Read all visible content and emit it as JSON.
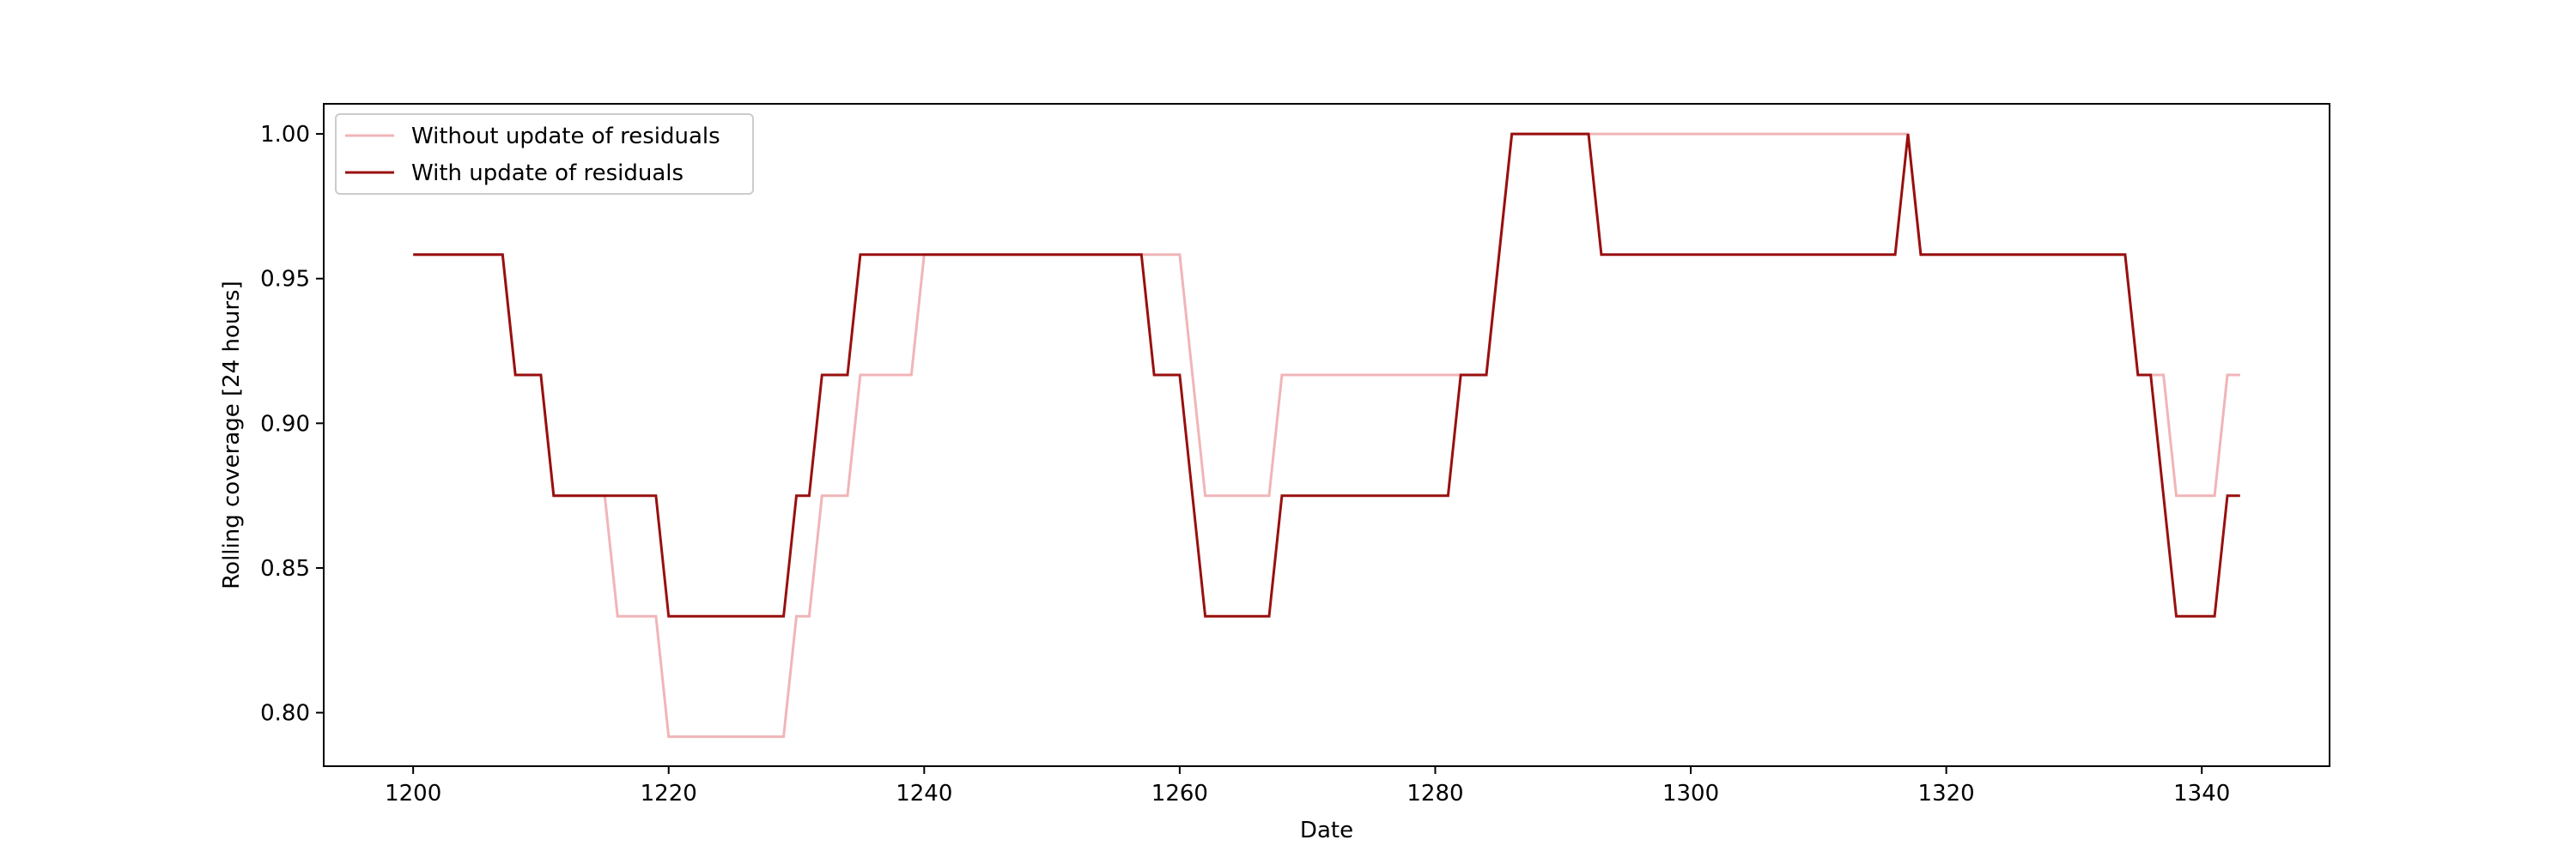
{
  "chart_data": {
    "type": "line",
    "title": "",
    "xlabel": "Date",
    "ylabel": "Rolling coverage [24 hours]",
    "xlim": [
      1193,
      1350
    ],
    "ylim": [
      0.7815,
      1.0104
    ],
    "xticks": [
      1200,
      1220,
      1240,
      1260,
      1280,
      1300,
      1320,
      1340
    ],
    "xtick_labels": [
      "1200",
      "1220",
      "1240",
      "1260",
      "1280",
      "1300",
      "1320",
      "1340"
    ],
    "yticks": [
      0.8,
      0.85,
      0.9,
      0.95,
      1.0
    ],
    "ytick_labels": [
      "0.80",
      "0.85",
      "0.90",
      "0.95",
      "1.00"
    ],
    "grid": false,
    "legend_position": "upper left",
    "series": [
      {
        "name": "Without update of residuals",
        "color": "#f0b5b8",
        "x": [
          1200,
          1207,
          1208,
          1210,
          1211,
          1215,
          1216,
          1219,
          1220,
          1229,
          1230,
          1231,
          1232,
          1234,
          1235,
          1239,
          1240,
          1260,
          1262,
          1267,
          1268,
          1282,
          1283,
          1284,
          1286,
          1292,
          1293,
          1316,
          1317,
          1318,
          1334,
          1335,
          1337,
          1338,
          1341,
          1342,
          1343
        ],
        "y": [
          0.9583,
          0.9583,
          0.9167,
          0.9167,
          0.875,
          0.875,
          0.8333,
          0.8333,
          0.7917,
          0.7917,
          0.8333,
          0.8333,
          0.875,
          0.875,
          0.9167,
          0.9167,
          0.9583,
          0.9583,
          0.875,
          0.875,
          0.9167,
          0.9167,
          0.9167,
          0.9167,
          1.0,
          1.0,
          1.0,
          1.0,
          1.0,
          0.9583,
          0.9583,
          0.9167,
          0.9167,
          0.875,
          0.875,
          0.9167,
          0.9167
        ]
      },
      {
        "name": "With update of residuals",
        "color": "#990f0f",
        "x": [
          1200,
          1207,
          1208,
          1210,
          1211,
          1219,
          1220,
          1229,
          1230,
          1231,
          1232,
          1234,
          1235,
          1257,
          1258,
          1260,
          1262,
          1267,
          1268,
          1281,
          1282,
          1284,
          1286,
          1292,
          1293,
          1316,
          1317,
          1318,
          1334,
          1335,
          1336,
          1338,
          1341,
          1342,
          1343
        ],
        "y": [
          0.9583,
          0.9583,
          0.9167,
          0.9167,
          0.875,
          0.875,
          0.8333,
          0.8333,
          0.875,
          0.875,
          0.9167,
          0.9167,
          0.9583,
          0.9583,
          0.9167,
          0.9167,
          0.8333,
          0.8333,
          0.875,
          0.875,
          0.9167,
          0.9167,
          1.0,
          1.0,
          0.9583,
          0.9583,
          1.0,
          0.9583,
          0.9583,
          0.9167,
          0.9167,
          0.8333,
          0.8333,
          0.875,
          0.875
        ]
      }
    ]
  }
}
